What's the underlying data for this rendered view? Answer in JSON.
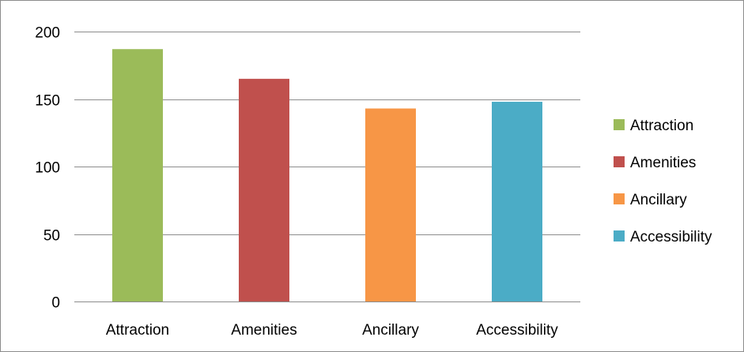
{
  "chart_data": {
    "type": "bar",
    "categories": [
      "Attraction",
      "Amenities",
      "Ancillary",
      "Accessibility"
    ],
    "values": [
      187,
      165,
      143,
      148
    ],
    "colors": [
      "#9bbb59",
      "#c0504d",
      "#f79646",
      "#4bacc6"
    ],
    "ylim": [
      0,
      200
    ],
    "yticks": [
      "0",
      "50",
      "100",
      "150",
      "200"
    ],
    "ytick_values": [
      0,
      50,
      100,
      150,
      200
    ],
    "grid": true,
    "legend_position": "right",
    "legend": [
      "Attraction",
      "Amenities",
      "Ancillary",
      "Accessibility"
    ],
    "title": "",
    "xlabel": "",
    "ylabel": ""
  }
}
